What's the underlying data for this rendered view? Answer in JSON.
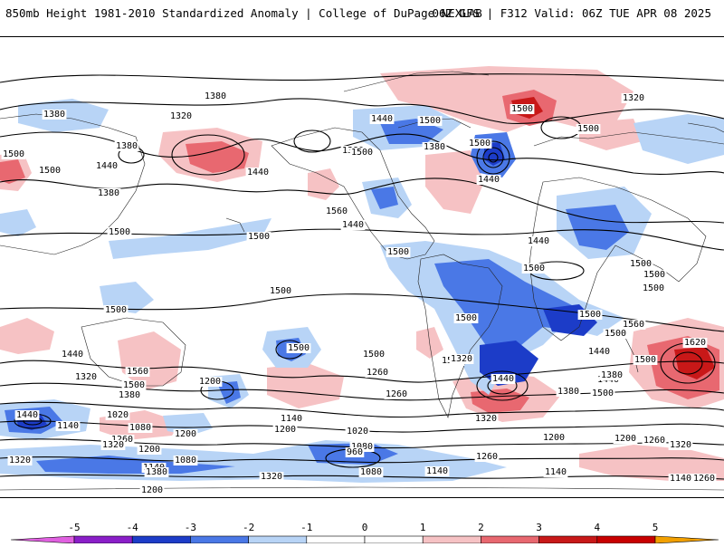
{
  "header": {
    "title_left": "850mb Height 1981-2010 Standardized Anomaly | College of DuPage NEXLAB",
    "title_right": "06Z GFS | F312 Valid: 06Z TUE APR 08 2025"
  },
  "colors": {
    "minus5": "#e060e0",
    "minus4": "#8a1ec8",
    "minus3": "#1c3cc8",
    "minus2": "#4a78e6",
    "minus1": "#b8d4f6",
    "zero": "#ffffff",
    "plus1": "#f6c2c4",
    "plus2": "#e86870",
    "plus3": "#c81818",
    "plus4": "#c80000",
    "plus5": "#f2a000"
  },
  "colorbar": {
    "ticks": [
      "-5",
      "-4",
      "-3",
      "-2",
      "-1",
      "0",
      "1",
      "2",
      "3",
      "4",
      "5"
    ]
  },
  "contour_labels": [
    "1380",
    "1380",
    "1320",
    "1440",
    "1500",
    "1500",
    "1380",
    "1440",
    "1500",
    "1500",
    "1380",
    "1500",
    "1560",
    "1440",
    "1500",
    "1320",
    "1380",
    "1440",
    "1500",
    "1380",
    "1440",
    "1440",
    "1500",
    "1500",
    "1500",
    "1500",
    "1500",
    "1500",
    "1500",
    "1500",
    "1500",
    "1500",
    "1500",
    "1500",
    "1560",
    "1500",
    "1500",
    "1620",
    "1440",
    "1320",
    "1380",
    "1440",
    "1500",
    "1560",
    "1500",
    "1380",
    "1260",
    "1320",
    "1200",
    "1140",
    "1020",
    "1140",
    "1080",
    "1200",
    "1260",
    "1320",
    "1200",
    "1380",
    "1140",
    "1080",
    "1200",
    "1020",
    "1080",
    "1140",
    "960",
    "1080",
    "1260",
    "1320",
    "1500",
    "1440",
    "1440",
    "1380",
    "1500",
    "1200",
    "1140",
    "1200",
    "1260",
    "1320",
    "1140",
    "1260",
    "1320",
    "1380",
    "1440",
    "1320",
    "1260",
    "1200"
  ]
}
